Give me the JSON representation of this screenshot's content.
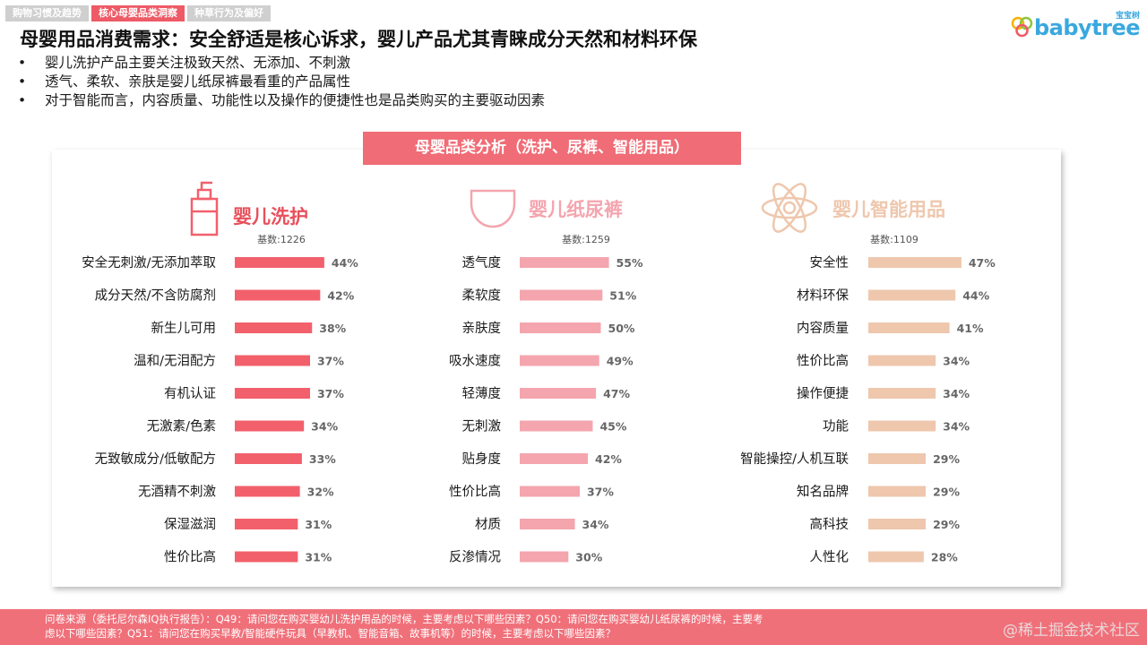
{
  "tabs": [
    {
      "label": "购物习惯及趋势",
      "active": false
    },
    {
      "label": "核心母婴品类洞察",
      "active": true
    },
    {
      "label": "种草行为及偏好",
      "active": false
    }
  ],
  "logo": {
    "text": "babytree",
    "cn": "宝宝树"
  },
  "headline": "母婴用品消费需求：安全舒适是核心诉求，婴儿产品尤其青睐成分天然和材料环保",
  "bullets": [
    "婴儿洗护产品主要关注极致天然、无添加、不刺激",
    "透气、柔软、亲肤是婴儿纸尿裤最看重的产品属性",
    "对于智能而言，内容质量、功能性以及操作的便捷性也是品类购买的主要驱动因素"
  ],
  "section_title": "母婴品类分析（洗护、尿裤、智能用品）",
  "footer": {
    "line1": "问卷来源（委托尼尔森IQ执行报告）：Q49：请问您在购买婴幼儿洗护用品的时候，主要考虑以下哪些因素？Q50：请问您在购买婴幼儿纸尿裤的时候，主要考",
    "line2": "虑以下哪些因素？Q51：请问您在购买早教/智能硬件玩具（早教机、智能音箱、故事机等）的时候，主要考虑以下哪些因素？"
  },
  "watermark": "@稀土掘金技术社区",
  "chart_data": [
    {
      "type": "bar",
      "orientation": "horizontal",
      "title": "婴儿洗护",
      "subtitle": "基数:1226",
      "icon": "lotion-bottle-icon",
      "color": "#f2606b",
      "categories": [
        "安全无刺激/无添加萃取",
        "成分天然/不含防腐剂",
        "新生儿可用",
        "温和/无泪配方",
        "有机认证",
        "无激素/色素",
        "无致敏成分/低敏配方",
        "无酒精不刺激",
        "保湿滋润",
        "性价比高"
      ],
      "values": [
        44,
        42,
        38,
        37,
        37,
        34,
        33,
        32,
        31,
        31
      ],
      "labels": [
        "44%",
        "42%",
        "38%",
        "37%",
        "37%",
        "34%",
        "33%",
        "32%",
        "31%",
        "31%"
      ]
    },
    {
      "type": "bar",
      "orientation": "horizontal",
      "title": "婴儿纸尿裤",
      "subtitle": "基数:1259",
      "icon": "diaper-icon",
      "color": "#f4a5ae",
      "categories": [
        "透气度",
        "柔软度",
        "亲肤度",
        "吸水速度",
        "轻薄度",
        "无刺激",
        "贴身度",
        "性价比高",
        "材质",
        "反渗情况"
      ],
      "values": [
        55,
        51,
        50,
        49,
        47,
        45,
        42,
        37,
        34,
        30
      ],
      "labels": [
        "55%",
        "51%",
        "50%",
        "49%",
        "47%",
        "45%",
        "42%",
        "37%",
        "34%",
        "30%"
      ]
    },
    {
      "type": "bar",
      "orientation": "horizontal",
      "title": "婴儿智能用品",
      "subtitle": "基数:1109",
      "icon": "atom-icon",
      "color": "#eec7ad",
      "categories": [
        "安全性",
        "材料环保",
        "内容质量",
        "性价比高",
        "操作便捷",
        "功能",
        "智能操控/人机互联",
        "知名品牌",
        "高科技",
        "人性化"
      ],
      "values": [
        47,
        44,
        41,
        34,
        34,
        34,
        29,
        29,
        29,
        28
      ],
      "labels": [
        "47%",
        "44%",
        "41%",
        "34%",
        "34%",
        "34%",
        "29%",
        "29%",
        "29%",
        "28%"
      ]
    }
  ]
}
